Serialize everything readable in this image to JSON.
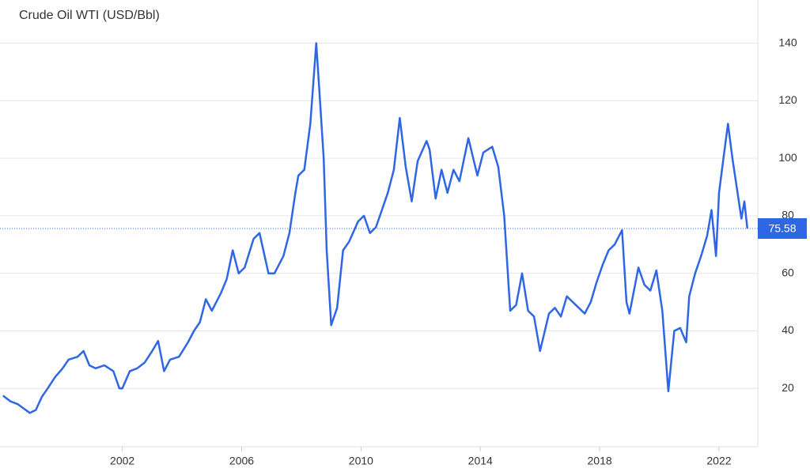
{
  "chart_data": {
    "type": "line",
    "title": "Crude Oil WTI (USD/Bbl)",
    "x": [
      1998.0,
      1998.25,
      1998.5,
      1998.9,
      1999.1,
      1999.3,
      1999.5,
      1999.75,
      2000.0,
      2000.2,
      2000.5,
      2000.7,
      2000.9,
      2001.1,
      2001.4,
      2001.7,
      2001.9,
      2002.0,
      2002.25,
      2002.5,
      2002.75,
      2003.0,
      2003.2,
      2003.4,
      2003.6,
      2003.9,
      2004.2,
      2004.4,
      2004.6,
      2004.8,
      2005.0,
      2005.3,
      2005.5,
      2005.7,
      2005.9,
      2006.1,
      2006.4,
      2006.6,
      2006.9,
      2007.1,
      2007.4,
      2007.6,
      2007.8,
      2007.9,
      2008.1,
      2008.3,
      2008.5,
      2008.6,
      2008.75,
      2008.85,
      2009.0,
      2009.2,
      2009.4,
      2009.6,
      2009.9,
      2010.1,
      2010.3,
      2010.5,
      2010.7,
      2010.9,
      2011.1,
      2011.3,
      2011.5,
      2011.7,
      2011.9,
      2012.2,
      2012.3,
      2012.5,
      2012.7,
      2012.9,
      2013.1,
      2013.3,
      2013.6,
      2013.9,
      2014.1,
      2014.4,
      2014.6,
      2014.8,
      2015.0,
      2015.2,
      2015.4,
      2015.6,
      2015.8,
      2016.0,
      2016.3,
      2016.5,
      2016.7,
      2016.9,
      2017.2,
      2017.5,
      2017.7,
      2017.9,
      2018.1,
      2018.3,
      2018.5,
      2018.75,
      2018.9,
      2019.0,
      2019.3,
      2019.5,
      2019.7,
      2019.9,
      2020.1,
      2020.3,
      2020.5,
      2020.7,
      2020.9,
      2021.0,
      2021.2,
      2021.4,
      2021.6,
      2021.75,
      2021.9,
      2022.0,
      2022.15,
      2022.3,
      2022.45,
      2022.65,
      2022.75,
      2022.85,
      2022.95
    ],
    "values": [
      17.5,
      15.5,
      14.5,
      11.5,
      12.5,
      17,
      20,
      24,
      27,
      30,
      31,
      33,
      28,
      27,
      28,
      26,
      20,
      20,
      26,
      27,
      29,
      33,
      36.5,
      26,
      30,
      31,
      36,
      40,
      43,
      51,
      47,
      53,
      58,
      68,
      60,
      62,
      72,
      74,
      60,
      60,
      66,
      74,
      88,
      94,
      96,
      112,
      140,
      124,
      100,
      68,
      42,
      48,
      68,
      71,
      78,
      80,
      74,
      76,
      82,
      88,
      96,
      114,
      97,
      85,
      99,
      106,
      103,
      86,
      96,
      88,
      96,
      92,
      107,
      94,
      102,
      104,
      97,
      80,
      47,
      49,
      60,
      47,
      45,
      33,
      46,
      48,
      45,
      52,
      49,
      46,
      50,
      57,
      63,
      68,
      70,
      75,
      50,
      46,
      62,
      56,
      54,
      61,
      47,
      19,
      40,
      41,
      36,
      52,
      60,
      66,
      73,
      82,
      66,
      88,
      100,
      112,
      100,
      86,
      79,
      85,
      75.58
    ],
    "color": "#2f66e4",
    "xlim": [
      1997.9,
      2023.3
    ],
    "xticks": [
      2002,
      2006,
      2010,
      2014,
      2018,
      2022
    ],
    "ylim": [
      0,
      155
    ],
    "yticks": [
      20,
      40,
      60,
      80,
      100,
      120,
      140
    ],
    "grid": true
  }
}
